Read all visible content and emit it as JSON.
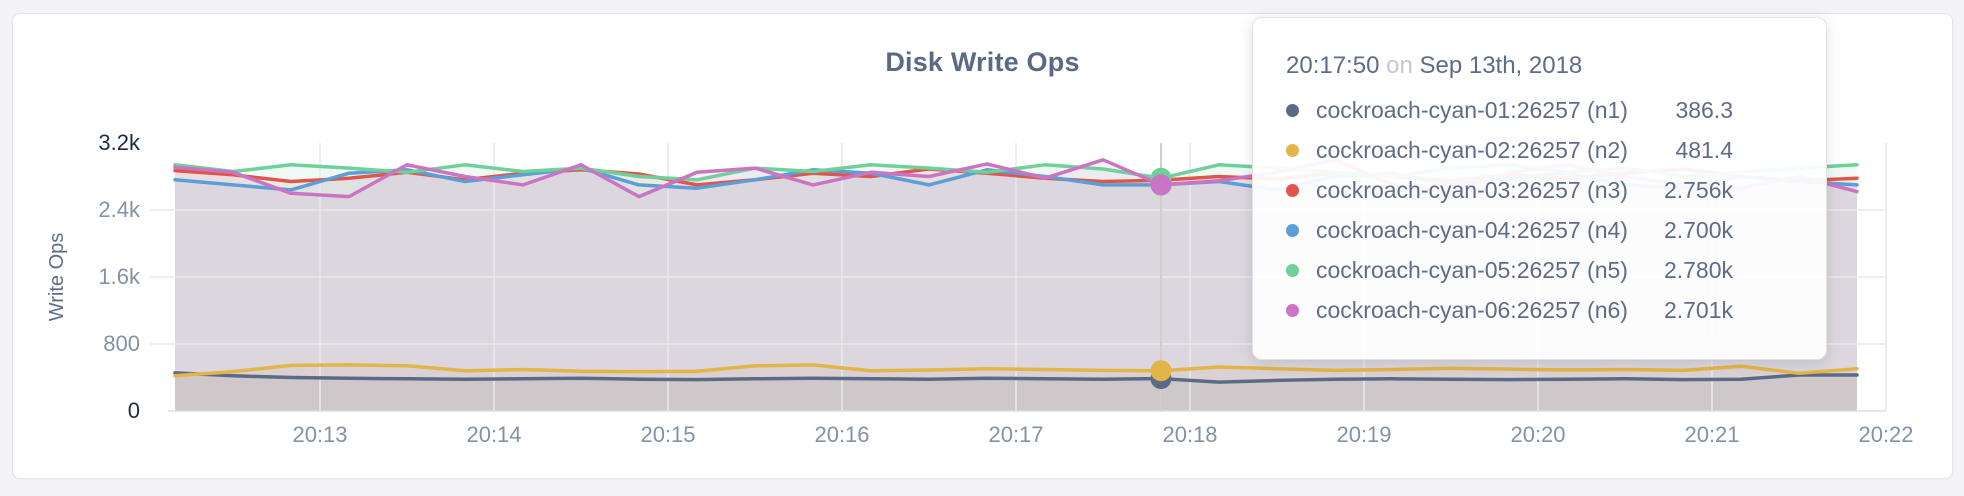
{
  "window": {
    "background": "#f4f4f6",
    "card_background": "#ffffff",
    "card_border": "#e4e4e6"
  },
  "chart": {
    "title": "Disk Write Ops",
    "y_axis": {
      "label": "Write Ops",
      "ticks": [
        {
          "label": "0",
          "value": 0,
          "emphasis": true
        },
        {
          "label": "800",
          "value": 800,
          "emphasis": false
        },
        {
          "label": "1.6k",
          "value": 1600,
          "emphasis": false
        },
        {
          "label": "2.4k",
          "value": 2400,
          "emphasis": false
        },
        {
          "label": "3.2k",
          "value": 3200,
          "emphasis": true
        }
      ]
    },
    "x_axis": {
      "ticks": [
        "20:13",
        "20:14",
        "20:15",
        "20:16",
        "20:17",
        "20:18",
        "20:19",
        "20:20",
        "20:21",
        "20:22"
      ]
    }
  },
  "tooltip": {
    "time": "20:17:50",
    "separator": "on",
    "date": "Sep 13th, 2018",
    "rows": [
      {
        "name": "cockroach-cyan-01:26257 (n1)",
        "value": "386.3",
        "color": "#5b6b87"
      },
      {
        "name": "cockroach-cyan-02:26257 (n2)",
        "value": "481.4",
        "color": "#e3b548"
      },
      {
        "name": "cockroach-cyan-03:26257 (n3)",
        "value": "2.756k",
        "color": "#e0564a"
      },
      {
        "name": "cockroach-cyan-04:26257 (n4)",
        "value": "2.700k",
        "color": "#5c9fd6"
      },
      {
        "name": "cockroach-cyan-05:26257 (n5)",
        "value": "2.780k",
        "color": "#6fd09a"
      },
      {
        "name": "cockroach-cyan-06:26257 (n6)",
        "value": "2.701k",
        "color": "#cc74c4"
      }
    ]
  },
  "chart_data": {
    "type": "line",
    "title": "Disk Write Ops",
    "xlabel": "",
    "ylabel": "Write Ops",
    "ylim": [
      0,
      3200
    ],
    "grid": true,
    "area_fill": true,
    "legend_position": "tooltip",
    "y_tick_labels": [
      "0",
      "800",
      "1.6k",
      "2.4k",
      "3.2k"
    ],
    "y_tick_values": [
      0,
      800,
      1600,
      2400,
      3200
    ],
    "x_tick_labels": [
      "20:13",
      "20:14",
      "20:15",
      "20:16",
      "20:17",
      "20:18",
      "20:19",
      "20:20",
      "20:21",
      "20:22"
    ],
    "x": [
      "20:12:10",
      "20:12:30",
      "20:12:50",
      "20:13:10",
      "20:13:30",
      "20:13:50",
      "20:14:10",
      "20:14:30",
      "20:14:50",
      "20:15:10",
      "20:15:30",
      "20:15:50",
      "20:16:10",
      "20:16:30",
      "20:16:50",
      "20:17:10",
      "20:17:30",
      "20:17:50",
      "20:18:10",
      "20:18:30",
      "20:18:50",
      "20:19:10",
      "20:19:30",
      "20:19:50",
      "20:20:10",
      "20:20:30",
      "20:20:50",
      "20:21:10",
      "20:21:30",
      "20:21:50"
    ],
    "series": [
      {
        "id": "n1",
        "name": "cockroach-cyan-01:26257 (n1)",
        "color": "#5b6b87",
        "values": [
          455,
          420,
          400,
          390,
          385,
          380,
          385,
          390,
          380,
          375,
          385,
          390,
          385,
          380,
          390,
          385,
          380,
          386.3,
          345,
          365,
          380,
          385,
          380,
          375,
          380,
          385,
          375,
          380,
          430,
          430
        ]
      },
      {
        "id": "n2",
        "name": "cockroach-cyan-02:26257 (n2)",
        "color": "#e3b548",
        "values": [
          420,
          470,
          545,
          550,
          540,
          480,
          495,
          475,
          470,
          475,
          540,
          550,
          480,
          490,
          505,
          495,
          485,
          481.4,
          525,
          505,
          485,
          495,
          510,
          500,
          490,
          495,
          485,
          535,
          450,
          505
        ]
      },
      {
        "id": "n3",
        "name": "cockroach-cyan-03:26257 (n3)",
        "color": "#e0564a",
        "values": [
          2870,
          2820,
          2740,
          2780,
          2850,
          2760,
          2840,
          2880,
          2830,
          2700,
          2760,
          2840,
          2800,
          2890,
          2840,
          2780,
          2740,
          2756,
          2800,
          2770,
          2840,
          2800,
          2750,
          2820,
          2780,
          2840,
          2890,
          2800,
          2750,
          2780
        ]
      },
      {
        "id": "n4",
        "name": "cockroach-cyan-04:26257 (n4)",
        "color": "#5c9fd6",
        "values": [
          2760,
          2700,
          2640,
          2840,
          2880,
          2740,
          2820,
          2900,
          2700,
          2660,
          2760,
          2880,
          2840,
          2700,
          2880,
          2800,
          2700,
          2700,
          2740,
          2640,
          2800,
          2840,
          2700,
          2780,
          2840,
          2700,
          2660,
          2800,
          2740,
          2700
        ]
      },
      {
        "id": "n5",
        "name": "cockroach-cyan-05:26257 (n5)",
        "color": "#6fd09a",
        "values": [
          2940,
          2860,
          2940,
          2900,
          2850,
          2940,
          2860,
          2900,
          2800,
          2760,
          2900,
          2860,
          2940,
          2900,
          2850,
          2940,
          2890,
          2780,
          2940,
          2900,
          2850,
          2800,
          2900,
          2940,
          2850,
          2900,
          2800,
          2850,
          2900,
          2940
        ]
      },
      {
        "id": "n6",
        "name": "cockroach-cyan-06:26257 (n6)",
        "color": "#cc74c4",
        "values": [
          2910,
          2850,
          2600,
          2560,
          2940,
          2800,
          2700,
          2940,
          2560,
          2850,
          2900,
          2700,
          2850,
          2800,
          2950,
          2780,
          3000,
          2701,
          2750,
          2850,
          3000,
          2700,
          2610,
          2850,
          2940,
          2800,
          2700,
          2660,
          2800,
          2620
        ]
      }
    ],
    "hover": {
      "time": "20:17:50",
      "date": "Sep 13th, 2018",
      "index": 17,
      "values": [
        386.3,
        481.4,
        2756,
        2700,
        2780,
        2701
      ],
      "formatted_values": [
        "386.3",
        "481.4",
        "2.756k",
        "2.700k",
        "2.780k",
        "2.701k"
      ]
    }
  }
}
